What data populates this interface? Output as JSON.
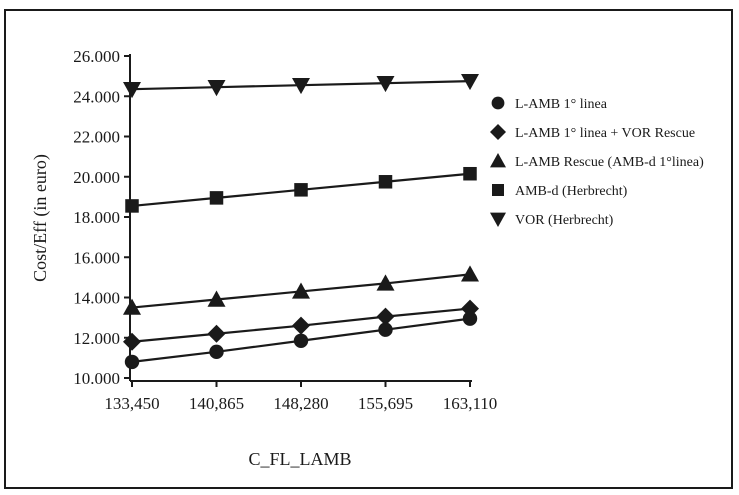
{
  "chart_data": {
    "type": "line",
    "title": "",
    "xlabel": "C_FL_LAMB",
    "ylabel": "Cost/Eff (in euro)",
    "categories": [
      "133,450",
      "140,865",
      "148,280",
      "155,695",
      "163,110"
    ],
    "x": [
      133450,
      140865,
      148280,
      155695,
      163110
    ],
    "ylim": [
      10000,
      26000
    ],
    "y_ticks": [
      10000,
      12000,
      14000,
      16000,
      18000,
      20000,
      22000,
      24000,
      26000
    ],
    "y_tick_labels": [
      "10.000",
      "12.000",
      "14.000",
      "16.000",
      "18.000",
      "20.000",
      "22.000",
      "24.000",
      "26.000"
    ],
    "grid": false,
    "legend_position": "right",
    "series": [
      {
        "name": "L-AMB 1° linea",
        "marker": "circle",
        "values": [
          10800,
          11300,
          11850,
          12400,
          12950
        ]
      },
      {
        "name": "L-AMB 1° linea + VOR Rescue",
        "marker": "diamond",
        "values": [
          11800,
          12200,
          12600,
          13050,
          13450
        ]
      },
      {
        "name": "L-AMB Rescue (AMB-d 1°linea)",
        "marker": "triangle-up",
        "values": [
          13500,
          13900,
          14300,
          14700,
          15150
        ]
      },
      {
        "name": "AMB-d (Herbrecht)",
        "marker": "square",
        "values": [
          18550,
          18950,
          19350,
          19750,
          20150
        ]
      },
      {
        "name": "VOR (Herbrecht)",
        "marker": "triangle-down",
        "values": [
          24350,
          24450,
          24550,
          24650,
          24750
        ]
      }
    ],
    "colors": {
      "line": "#1a1a1a",
      "marker": "#1a1a1a"
    }
  }
}
